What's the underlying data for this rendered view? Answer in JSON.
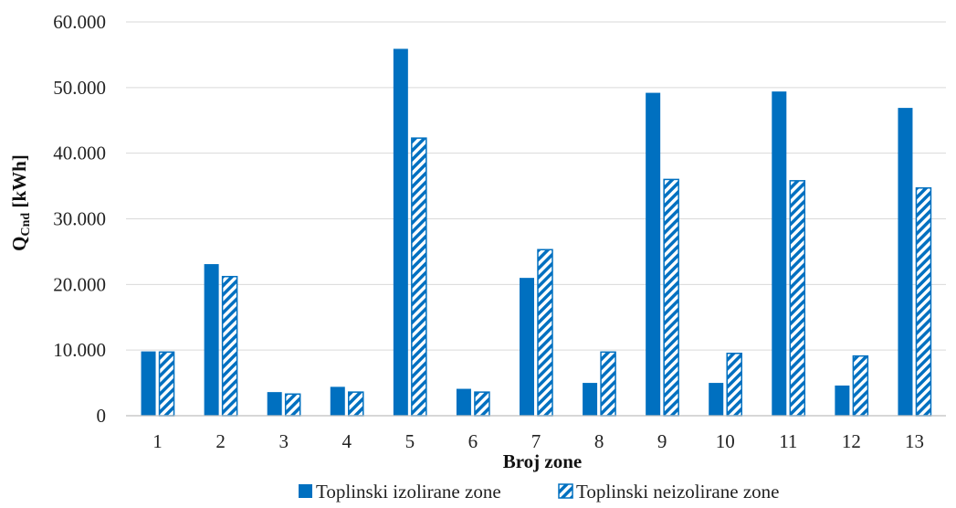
{
  "chart_data": {
    "type": "bar",
    "title": "",
    "xlabel": "Broj zone",
    "ylabel": "Q",
    "ylabel_sub": "Cnd",
    "ylabel_unit": " [kWh]",
    "categories": [
      "1",
      "2",
      "3",
      "4",
      "5",
      "6",
      "7",
      "8",
      "9",
      "10",
      "11",
      "12",
      "13"
    ],
    "y_ticks": [
      "0",
      "10.000",
      "20.000",
      "30.000",
      "40.000",
      "50.000",
      "60.000"
    ],
    "ylim": [
      0,
      60000
    ],
    "grid": true,
    "legend_position": "bottom",
    "series": [
      {
        "name": "Toplinski izolirane zone",
        "color": "#0070C0",
        "pattern": "solid",
        "values": [
          9800,
          23100,
          3600,
          4400,
          55900,
          4100,
          21000,
          5000,
          49200,
          5000,
          49400,
          4600,
          46900
        ]
      },
      {
        "name": "Toplinski neizolirane zone",
        "color": "#0070C0",
        "pattern": "hatched",
        "values": [
          9700,
          21200,
          3300,
          3600,
          42300,
          3600,
          25300,
          9700,
          36000,
          9500,
          35800,
          9100,
          34700
        ]
      }
    ]
  }
}
